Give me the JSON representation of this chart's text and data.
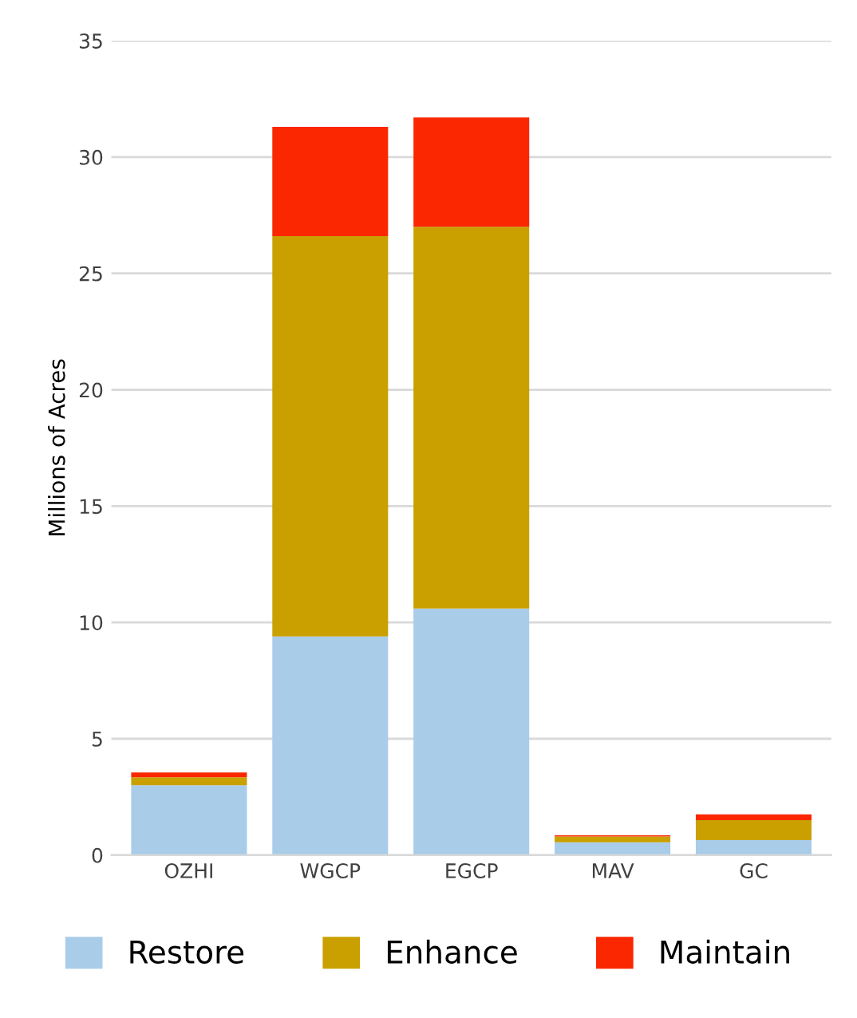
{
  "chart_data": {
    "type": "bar",
    "stacked": true,
    "ylabel": "Millions of Acres",
    "categories": [
      "OZHI",
      "WGCP",
      "EGCP",
      "MAV",
      "GC"
    ],
    "series": [
      {
        "name": "Restore",
        "color": "#a9cce9",
        "values": [
          3.0,
          9.4,
          10.6,
          0.55,
          0.65
        ]
      },
      {
        "name": "Enhance",
        "color": "#c9a000",
        "values": [
          0.35,
          17.2,
          16.4,
          0.25,
          0.85
        ]
      },
      {
        "name": "Maintain",
        "color": "#fa2700",
        "values": [
          0.2,
          4.7,
          4.7,
          0.05,
          0.25
        ]
      }
    ],
    "ylim": [
      0,
      35
    ],
    "yticks": [
      0,
      5,
      10,
      15,
      20,
      25,
      30,
      35
    ],
    "grid": "y",
    "legend": "bottom"
  }
}
